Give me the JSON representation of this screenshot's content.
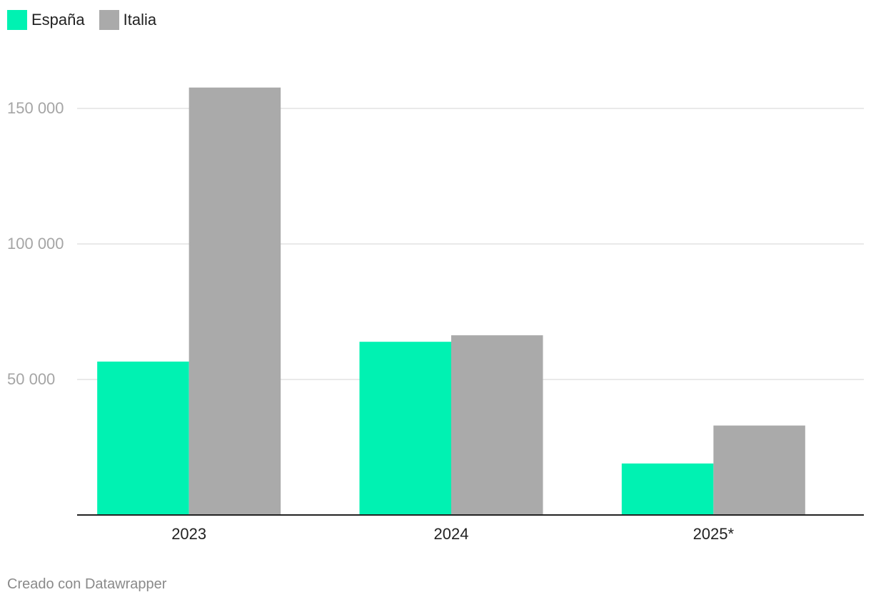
{
  "legend": [
    {
      "name": "España",
      "color": "#00f2b2"
    },
    {
      "name": "Italia",
      "color": "#aaaaaa"
    }
  ],
  "footer": {
    "credit": "Creado con Datawrapper"
  },
  "chart_data": {
    "type": "bar",
    "title": "",
    "xlabel": "",
    "ylabel": "",
    "categories": [
      "2023",
      "2024",
      "2025*"
    ],
    "series": [
      {
        "name": "España",
        "color": "#00f2b2",
        "values": [
          56600,
          63900,
          19000
        ]
      },
      {
        "name": "Italia",
        "color": "#aaaaaa",
        "values": [
          157700,
          66300,
          33000
        ]
      }
    ],
    "ylim": [
      0,
      168000
    ],
    "yticks": [
      50000,
      100000,
      150000
    ],
    "ytick_labels": [
      "50 000",
      "100 000",
      "150 000"
    ],
    "grid": true,
    "legend_position": "top-left"
  }
}
